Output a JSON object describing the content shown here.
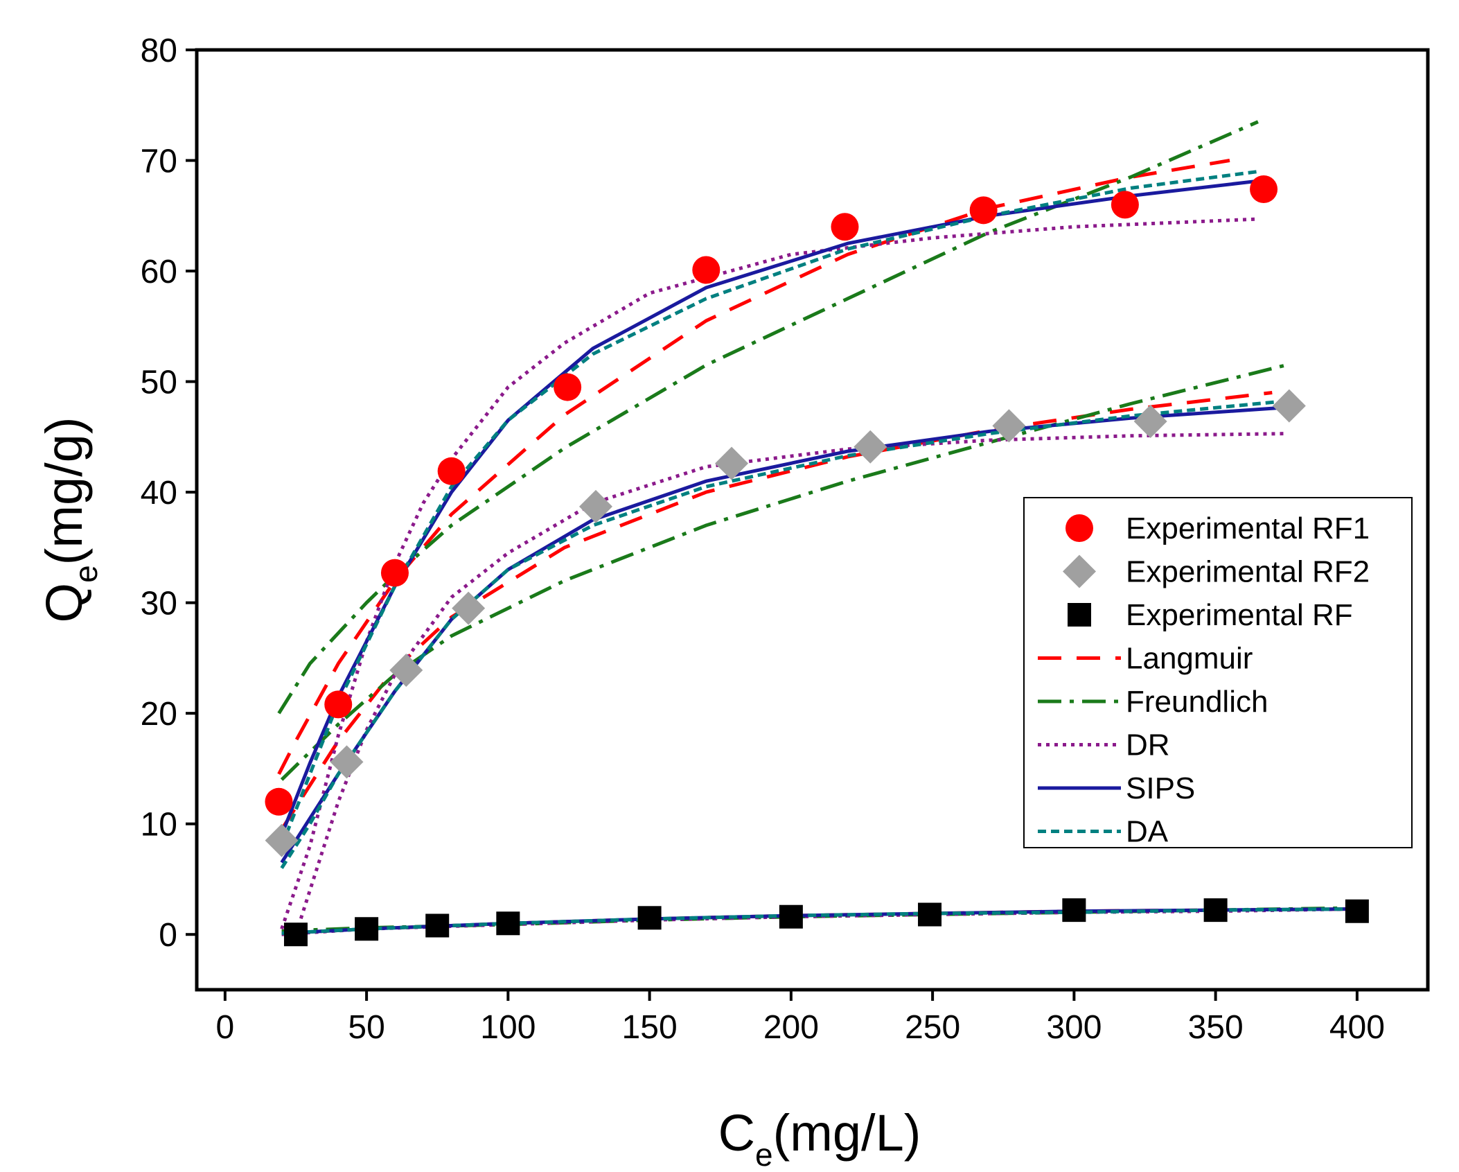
{
  "chart_data": {
    "type": "scatter",
    "title": "",
    "xlabel": {
      "main": "C",
      "sub": "e",
      "unit": "(mg/L)"
    },
    "ylabel": {
      "main": "Q",
      "sub": "e",
      "unit": "(mg/g)"
    },
    "xlim": [
      -10,
      425
    ],
    "ylim": [
      -5,
      80
    ],
    "xticks": [
      0,
      50,
      100,
      150,
      200,
      250,
      300,
      350,
      400
    ],
    "yticks": [
      0,
      10,
      20,
      30,
      40,
      50,
      60,
      70,
      80
    ],
    "grid": false,
    "legend_position": "center-right",
    "scatter_series": [
      {
        "name": "Experimental RF1",
        "marker": "circle",
        "color": "#ff0000",
        "x": [
          19,
          40,
          60,
          80,
          121,
          170,
          219,
          268,
          318,
          367
        ],
        "y": [
          12.0,
          20.8,
          32.7,
          41.9,
          49.5,
          60.1,
          64.0,
          65.5,
          66.0,
          67.4
        ]
      },
      {
        "name": "Experimental RF2",
        "marker": "diamond",
        "color": "#a0a0a0",
        "x": [
          20,
          43,
          64,
          86,
          131,
          179,
          228,
          277,
          327,
          376
        ],
        "y": [
          8.5,
          15.6,
          23.9,
          29.5,
          38.7,
          42.6,
          44.1,
          46.0,
          46.4,
          47.8
        ]
      },
      {
        "name": "Experimental RF",
        "marker": "square",
        "color": "#000000",
        "x": [
          25,
          50,
          75,
          100,
          150,
          200,
          249,
          300,
          350,
          400
        ],
        "y": [
          0.0,
          0.5,
          0.8,
          1.0,
          1.5,
          1.6,
          1.8,
          2.2,
          2.2,
          2.1
        ]
      }
    ],
    "fit_models": [
      {
        "name": "Langmuir",
        "color": "#ff0000",
        "dash": "34 22",
        "width": 5,
        "curves": [
          {
            "x": [
              19,
              25,
              40,
              60,
              80,
              120,
              170,
              220,
              270,
              320,
              355
            ],
            "y": [
              14.5,
              17.5,
              24.5,
              32.0,
              38.0,
              47.0,
              55.5,
              61.5,
              65.7,
              68.5,
              70.0
            ]
          },
          {
            "x": [
              20,
              40,
              60,
              80,
              120,
              170,
              220,
              270,
              320,
              370
            ],
            "y": [
              9.5,
              17.5,
              24.0,
              28.7,
              35.0,
              40.0,
              43.2,
              45.6,
              47.5,
              49.0
            ]
          },
          {
            "x": [
              20,
              50,
              100,
              150,
              200,
              250,
              300,
              350,
              400
            ],
            "y": [
              0.1,
              0.5,
              1.0,
              1.4,
              1.7,
              1.9,
              2.1,
              2.2,
              2.3
            ]
          }
        ]
      },
      {
        "name": "Freundlich",
        "color": "#1a7a1a",
        "dash": "34 12 6 12",
        "width": 5,
        "curves": [
          {
            "x": [
              19,
              30,
              50,
              60,
              80,
              120,
              170,
              220,
              270,
              320,
              365
            ],
            "y": [
              20.0,
              24.5,
              30.0,
              32.5,
              37.0,
              44.0,
              51.5,
              57.5,
              63.5,
              68.5,
              73.5
            ]
          },
          {
            "x": [
              20,
              40,
              60,
              80,
              120,
              170,
              220,
              270,
              320,
              375
            ],
            "y": [
              14.0,
              19.0,
              23.5,
              27.0,
              32.0,
              37.0,
              41.0,
              44.5,
              48.0,
              51.5
            ]
          },
          {
            "x": [
              20,
              50,
              100,
              150,
              200,
              250,
              300,
              350,
              400
            ],
            "y": [
              0.3,
              0.6,
              0.9,
              1.3,
              1.6,
              1.8,
              2.0,
              2.2,
              2.4
            ]
          }
        ]
      },
      {
        "name": "DR",
        "color": "#8b1a8b",
        "dash": "5 7",
        "width": 5,
        "curves": [
          {
            "x": [
              20,
              30,
              40,
              50,
              60,
              70,
              80,
              100,
              120,
              150,
              200,
              250,
              300,
              365
            ],
            "y": [
              0.5,
              8.0,
              18.0,
              26.5,
              33.5,
              39.0,
              43.0,
              49.5,
              53.5,
              58.0,
              61.5,
              63.0,
              64.0,
              64.7
            ]
          },
          {
            "x": [
              25,
              40,
              50,
              60,
              80,
              100,
              130,
              170,
              220,
              270,
              320,
              375
            ],
            "y": [
              0.0,
              12.0,
              18.5,
              23.5,
              30.5,
              34.5,
              39.0,
              42.3,
              43.9,
              44.7,
              45.1,
              45.3
            ]
          },
          {
            "x": [
              20,
              50,
              100,
              150,
              200,
              250,
              300,
              350,
              400
            ],
            "y": [
              0.0,
              0.5,
              0.9,
              1.3,
              1.6,
              1.8,
              2.0,
              2.1,
              2.3
            ]
          }
        ]
      },
      {
        "name": "SIPS",
        "color": "#1a1a9e",
        "dash": "",
        "width": 5,
        "curves": [
          {
            "x": [
              20,
              30,
              40,
              60,
              80,
              100,
              130,
              170,
              220,
              270,
              320,
              367
            ],
            "y": [
              9.0,
              15.5,
              21.5,
              31.5,
              40.0,
              46.5,
              53.0,
              58.5,
              62.5,
              65.0,
              66.8,
              68.2
            ]
          },
          {
            "x": [
              20,
              30,
              40,
              60,
              80,
              100,
              130,
              170,
              220,
              270,
              320,
              377
            ],
            "y": [
              6.5,
              10.5,
              14.5,
              22.0,
              28.5,
              33.0,
              37.5,
              41.0,
              43.7,
              45.5,
              46.7,
              47.7
            ]
          },
          {
            "x": [
              20,
              50,
              100,
              150,
              200,
              250,
              300,
              350,
              400
            ],
            "y": [
              0.1,
              0.5,
              1.0,
              1.4,
              1.7,
              1.9,
              2.1,
              2.2,
              2.3
            ]
          }
        ]
      },
      {
        "name": "DA",
        "color": "#008080",
        "dash": "12 7",
        "width": 5,
        "curves": [
          {
            "x": [
              20,
              30,
              40,
              60,
              80,
              100,
              130,
              170,
              220,
              270,
              320,
              365
            ],
            "y": [
              8.0,
              14.5,
              21.0,
              31.5,
              40.5,
              46.5,
              52.5,
              57.5,
              62.0,
              65.0,
              67.5,
              69.0
            ]
          },
          {
            "x": [
              20,
              30,
              40,
              60,
              80,
              100,
              130,
              170,
              220,
              270,
              320,
              377
            ],
            "y": [
              6.0,
              10.0,
              14.5,
              22.0,
              28.5,
              33.0,
              37.0,
              40.5,
              43.3,
              45.3,
              46.9,
              48.3
            ]
          },
          {
            "x": [
              20,
              50,
              100,
              150,
              200,
              250,
              300,
              350,
              400
            ],
            "y": [
              0.1,
              0.5,
              1.0,
              1.4,
              1.7,
              1.9,
              2.0,
              2.2,
              2.3
            ]
          }
        ]
      }
    ]
  }
}
